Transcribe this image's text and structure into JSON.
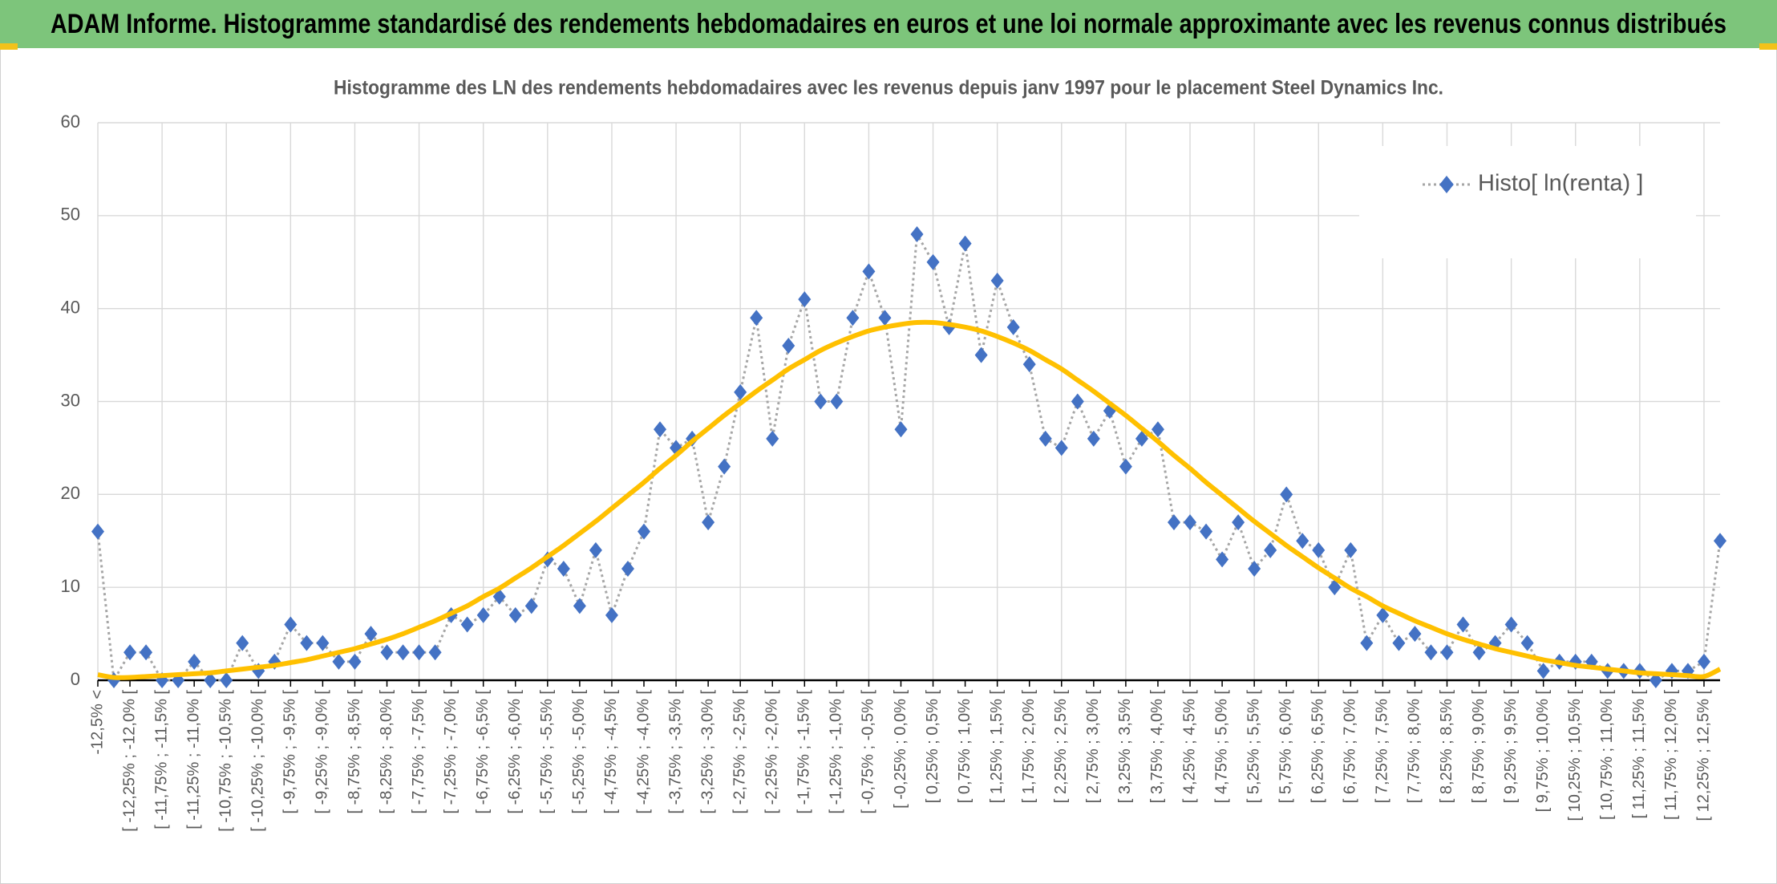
{
  "header": {
    "title": "ADAM Informe. Histogramme standardisé des rendements hebdomadaires en euros et une loi normale approximante avec les revenus connus distribués"
  },
  "chart_data": {
    "type": "line",
    "title": "Histogramme des LN des rendements hebdomadaires avec les revenus depuis janv 1997 pour le placement Steel Dynamics Inc.",
    "categories": [
      "-12,5% <",
      null,
      "[ -12,25% ; -12,0% [",
      null,
      "[ -11,75% ; -11,5% [",
      null,
      "[ -11,25% ; -11,0% [",
      null,
      "[ -10,75% ; -10,5% [",
      null,
      "[ -10,25% ; -10,0% [",
      null,
      "[ -9,75% ; -9,5% [",
      null,
      "[ -9,25% ; -9,0% [",
      null,
      "[ -8,75% ; -8,5% [",
      null,
      "[ -8,25% ; -8,0% [",
      null,
      "[ -7,75% ; -7,5% [",
      null,
      "[ -7,25% ; -7,0% [",
      null,
      "[ -6,75% ; -6,5% [",
      null,
      "[ -6,25% ; -6,0% [",
      null,
      "[ -5,75% ; -5,5% [",
      null,
      "[ -5,25% ; -5,0% [",
      null,
      "[ -4,75% ; -4,5% [",
      null,
      "[ -4,25% ; -4,0% [",
      null,
      "[ -3,75% ; -3,5% [",
      null,
      "[ -3,25% ; -3,0% [",
      null,
      "[ -2,75% ; -2,5% [",
      null,
      "[ -2,25% ; -2,0% [",
      null,
      "[ -1,75% ; -1,5% [",
      null,
      "[ -1,25% ; -1,0% [",
      null,
      "[ -0,75% ; -0,5% [",
      null,
      "[ -0,25% ; 0,0% [",
      null,
      "[ 0,25% ; 0,5% [",
      null,
      "[ 0,75% ; 1,0% [",
      null,
      "[ 1,25% ; 1,5% [",
      null,
      "[ 1,75% ; 2,0% [",
      null,
      "[ 2,25% ; 2,5% [",
      null,
      "[ 2,75% ; 3,0% [",
      null,
      "[ 3,25% ; 3,5% [",
      null,
      "[ 3,75% ; 4,0% [",
      null,
      "[ 4,25% ; 4,5% [",
      null,
      "[ 4,75% ; 5,0% [",
      null,
      "[ 5,25% ; 5,5% [",
      null,
      "[ 5,75% ; 6,0% [",
      null,
      "[ 6,25% ; 6,5% [",
      null,
      "[ 6,75% ; 7,0% [",
      null,
      "[ 7,25% ; 7,5% [",
      null,
      "[ 7,75% ; 8,0% [",
      null,
      "[ 8,25% ; 8,5% [",
      null,
      "[ 8,75% ; 9,0% [",
      null,
      "[ 9,25% ; 9,5% [",
      null,
      "[ 9,75% ; 10,0% [",
      null,
      "[ 10,25% ; 10,5% [",
      null,
      "[ 10,75% ; 11,0% [",
      null,
      "[ 11,25% ; 11,5% [",
      null,
      "[ 11,75% ; 12,0% [",
      null,
      "[ 12,25% ; 12,5% [",
      null
    ],
    "series": [
      {
        "name": "Histo[ ln(renta) ]",
        "color": "#4472c4",
        "line_color": "#a6a6a6",
        "values": [
          16,
          0,
          3,
          3,
          0,
          0,
          2,
          0,
          0,
          4,
          1,
          2,
          6,
          4,
          4,
          2,
          2,
          5,
          3,
          3,
          3,
          3,
          7,
          6,
          7,
          9,
          7,
          8,
          13,
          12,
          8,
          14,
          7,
          12,
          16,
          27,
          25,
          26,
          17,
          23,
          31,
          39,
          26,
          36,
          41,
          30,
          30,
          39,
          44,
          39,
          27,
          48,
          45,
          38,
          47,
          35,
          43,
          38,
          34,
          26,
          25,
          30,
          26,
          29,
          23,
          26,
          27,
          17,
          17,
          16,
          13,
          17,
          12,
          14,
          20,
          15,
          14,
          10,
          14,
          4,
          7,
          4,
          5,
          3,
          3,
          6,
          3,
          4,
          6,
          4,
          1,
          2,
          2,
          2,
          1,
          1,
          1,
          0,
          1,
          1,
          2,
          15
        ]
      },
      {
        "color": "#ffc000",
        "values": [
          0.6,
          0.3,
          0.3,
          0.4,
          0.5,
          0.6,
          0.7,
          0.8,
          1.0,
          1.2,
          1.4,
          1.6,
          1.9,
          2.2,
          2.6,
          3.0,
          3.4,
          3.9,
          4.4,
          5.0,
          5.7,
          6.4,
          7.2,
          8.0,
          9.0,
          9.9,
          11.0,
          12.1,
          13.3,
          14.5,
          15.8,
          17.1,
          18.5,
          19.9,
          21.3,
          22.8,
          24.2,
          25.7,
          27.1,
          28.5,
          29.8,
          31.1,
          32.3,
          33.5,
          34.5,
          35.5,
          36.3,
          37.0,
          37.6,
          38.0,
          38.3,
          38.5,
          38.5,
          38.3,
          38.0,
          37.6,
          37.0,
          36.3,
          35.5,
          34.5,
          33.5,
          32.3,
          31.1,
          29.8,
          28.5,
          27.1,
          25.7,
          24.2,
          22.8,
          21.3,
          19.9,
          18.5,
          17.1,
          15.8,
          14.5,
          13.3,
          12.1,
          11.0,
          9.9,
          9.0,
          8.0,
          7.2,
          6.4,
          5.7,
          5.0,
          4.4,
          3.9,
          3.4,
          3.0,
          2.6,
          2.2,
          1.9,
          1.6,
          1.4,
          1.2,
          1.0,
          0.8,
          0.7,
          0.6,
          0.5,
          0.4,
          1.2
        ]
      }
    ],
    "ylim": [
      0,
      60
    ],
    "yticks": [
      0,
      10,
      20,
      30,
      40,
      50,
      60
    ],
    "grid": true,
    "legend": "top-right"
  }
}
